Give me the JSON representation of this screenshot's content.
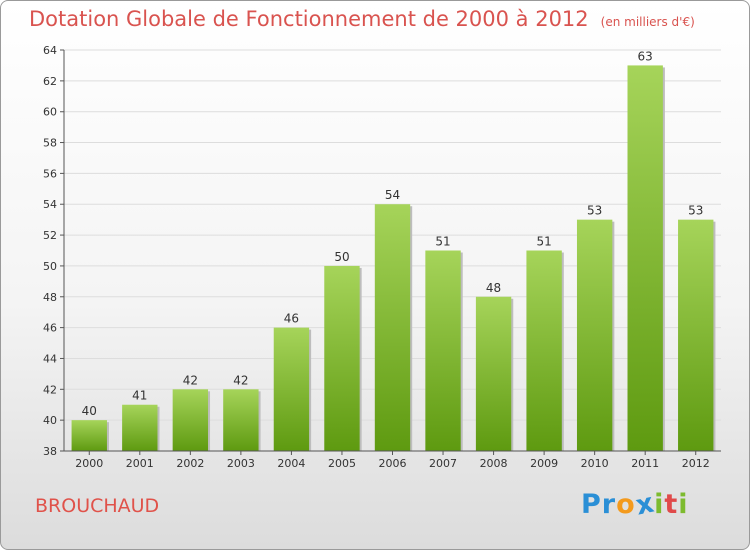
{
  "title": "Dotation Globale de Fonctionnement de 2000 à 2012",
  "subtitle": "(en milliers d'€)",
  "commune": "BROUCHAUD",
  "brand": {
    "text": "Proxiti",
    "letters": [
      "P",
      "r",
      "o",
      "x",
      "i",
      "t",
      "i"
    ],
    "colors": [
      "#2a8fd6",
      "#2a8fd6",
      "#f39a1d",
      "#2a8fd6",
      "#7dbb2e",
      "#e04a4a",
      "#7dbb2e"
    ]
  },
  "colors": {
    "bar_top": "#a6d45a",
    "bar_bottom": "#5e9a10",
    "title": "#d9534f",
    "axis": "#555555",
    "grid": "#dddddd"
  },
  "chart_data": {
    "type": "bar",
    "categories": [
      "2000",
      "2001",
      "2002",
      "2003",
      "2004",
      "2005",
      "2006",
      "2007",
      "2008",
      "2009",
      "2010",
      "2011",
      "2012"
    ],
    "values": [
      40,
      41,
      42,
      42,
      46,
      50,
      54,
      51,
      48,
      51,
      53,
      63,
      53
    ],
    "ylim": [
      38,
      64
    ],
    "yticks": [
      38,
      40,
      42,
      44,
      46,
      48,
      50,
      52,
      54,
      56,
      58,
      60,
      62,
      64
    ],
    "grid": true
  }
}
